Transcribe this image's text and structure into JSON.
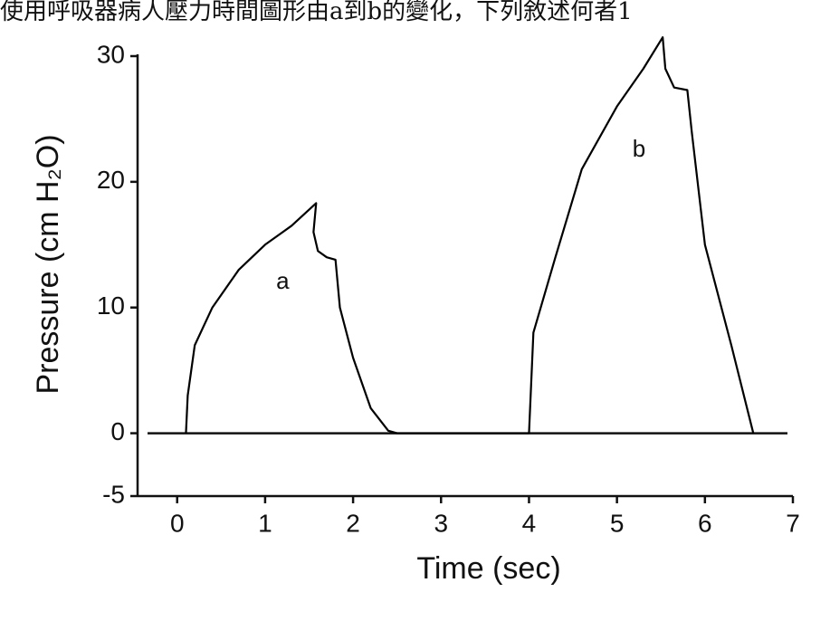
{
  "caption": "使用呼吸器病人壓力時間圖形由a到b的變化，下列敘述何者1",
  "chart_data": {
    "type": "line",
    "xlabel": "Time (sec)",
    "ylabel": "Pressure (cm H₂O)",
    "x": [
      0.1,
      0.12,
      0.2,
      0.4,
      0.7,
      1.0,
      1.3,
      1.58,
      1.55,
      1.6,
      1.7,
      1.8,
      1.85,
      2.0,
      2.2,
      2.4,
      2.5,
      3.0,
      4.0,
      4.05,
      4.3,
      4.6,
      5.0,
      5.3,
      5.52,
      5.55,
      5.65,
      5.8,
      5.85,
      6.0,
      6.3,
      6.55
    ],
    "series": [
      {
        "color": "#000000",
        "values": [
          0,
          3,
          7,
          10,
          13,
          15,
          16.5,
          18.3,
          16,
          14.5,
          14,
          13.8,
          10,
          6,
          2,
          0.2,
          0,
          0,
          0,
          8,
          14,
          21,
          26,
          29,
          31.5,
          29,
          27.5,
          27.3,
          24,
          15,
          7,
          0
        ]
      }
    ],
    "annotations": [
      {
        "text": "a",
        "x": 1.2,
        "y": 12
      },
      {
        "text": "b",
        "x": 5.25,
        "y": 22.5
      }
    ],
    "xlim": [
      -0.45,
      7
    ],
    "xticks": [
      0,
      1,
      2,
      3,
      4,
      5,
      6,
      7
    ],
    "ylim": [
      -5,
      30
    ],
    "yticks": [
      -5,
      0,
      10,
      20,
      30
    ]
  }
}
